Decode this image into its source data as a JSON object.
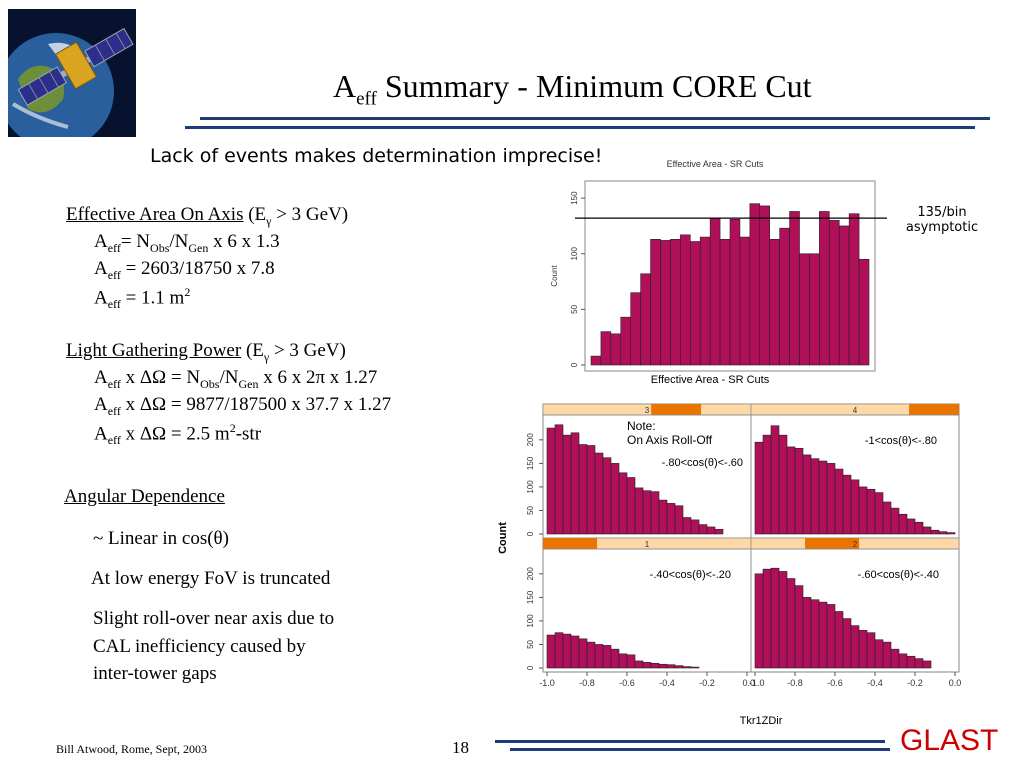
{
  "header": {
    "title_main": "A",
    "title_sub": "eff",
    "title_rest": " Summary - Minimum CORE Cut",
    "logo_icon": "satellite-over-earth-icon",
    "rule_color": "#1f3a7a"
  },
  "subtitle": "Lack of events makes determination imprecise!",
  "left": {
    "s1_heading": "Effective Area On Axis",
    "s1_cond": "(E",
    "s1_cond_sub": "γ",
    "s1_cond_rest": " > 3 GeV)",
    "s1_l1_a": "A",
    "s1_l1_sub": "eff",
    "s1_l1_b": "= N",
    "s1_l1_sub2": "Obs",
    "s1_l1_c": "/N",
    "s1_l1_sub3": "Gen",
    "s1_l1_d": " x 6 x 1.3",
    "s1_l2_a": "A",
    "s1_l2_sub": "eff",
    "s1_l2_b": " = 2603/18750 x 7.8",
    "s1_l3_a": "A",
    "s1_l3_sub": "eff",
    "s1_l3_b": " = 1.1 m",
    "s1_l3_sup": "2",
    "s2_heading": "Light Gathering Power",
    "s2_cond": "(E",
    "s2_cond_sub": "γ",
    "s2_cond_rest": " > 3 GeV)",
    "s2_l1_a": "A",
    "s2_l1_sub": "eff",
    "s2_l1_b": " x ΔΩ = N",
    "s2_l1_sub2": "Obs",
    "s2_l1_c": "/N",
    "s2_l1_sub3": "Gen",
    "s2_l1_d": " x 6 x 2π x 1.27",
    "s2_l2_a": "A",
    "s2_l2_sub": "eff",
    "s2_l2_b": " x ΔΩ = 9877/187500 x 37.7 x 1.27",
    "s2_l3_a": "A",
    "s2_l3_sub": "eff",
    "s2_l3_b": " x ΔΩ = 2.5 m",
    "s2_l3_sup": "2",
    "s2_l3_c": "-str",
    "s3_heading": "Angular Dependence",
    "s3_l1": "~ Linear in cos(θ)",
    "s3_l2": "At low energy FoV is truncated",
    "s3_l3": "Slight roll-over near axis due to",
    "s3_l4": "CAL inefficiency caused by",
    "s3_l5": "inter-tower gaps"
  },
  "annotations": {
    "asymptote_line1": "135/bin",
    "asymptote_line2": "asymptotic",
    "note_line1": "Note:",
    "note_line2": "On Axis Roll-Off"
  },
  "footer": {
    "author": "Bill Atwood,  Rome, Sept, 2003",
    "page": "18",
    "brand": "GLAST",
    "brand_color": "#cc0000"
  },
  "chart_data": [
    {
      "type": "bar",
      "title": "Effective Area - SR Cuts",
      "xlabel": "Effective Area - SR Cuts",
      "ylabel": "Count",
      "ylim": [
        0,
        160
      ],
      "yticks": [
        0,
        50,
        100,
        150
      ],
      "values": [
        8,
        30,
        28,
        43,
        65,
        82,
        113,
        112,
        113,
        117,
        111,
        115,
        132,
        113,
        131,
        115,
        145,
        143,
        113,
        123,
        138,
        100,
        100,
        138,
        130,
        125,
        136,
        95
      ],
      "reference_line": 132,
      "color": "#b0105a",
      "grid": false
    },
    {
      "type": "bar",
      "xlabel": "Tkr1ZDir",
      "ylabel": "Count",
      "xlim": [
        -1.0,
        0.0
      ],
      "xticks": [
        "-1.0",
        "-0.8",
        "-0.6",
        "-0.4",
        "-0.2",
        "0.0"
      ],
      "ylim": [
        0,
        240
      ],
      "yticks": [
        0,
        50,
        100,
        150,
        200
      ],
      "color": "#b0105a",
      "panels": [
        {
          "strip": "3",
          "label_line1": "-.80<cos(θ)<-.60",
          "values": [
            225,
            232,
            210,
            215,
            190,
            188,
            172,
            162,
            150,
            130,
            120,
            98,
            92,
            90,
            72,
            65,
            60,
            35,
            30,
            20,
            15,
            10
          ]
        },
        {
          "strip": "4",
          "label_line1": "-1<cos(θ)<-.80",
          "values": [
            195,
            210,
            230,
            210,
            185,
            182,
            168,
            160,
            155,
            150,
            138,
            125,
            115,
            100,
            95,
            88,
            68,
            55,
            42,
            32,
            25,
            15,
            8,
            5,
            3
          ]
        },
        {
          "strip": "1",
          "label_line1": "-.40<cos(θ)<-.20",
          "values": [
            70,
            75,
            72,
            68,
            62,
            55,
            50,
            48,
            40,
            30,
            28,
            15,
            12,
            10,
            8,
            7,
            5,
            3,
            2
          ]
        },
        {
          "strip": "2",
          "label_line1": "-.60<cos(θ)<-.40",
          "values": [
            200,
            210,
            212,
            205,
            190,
            175,
            150,
            145,
            140,
            135,
            120,
            105,
            90,
            80,
            75,
            60,
            55,
            40,
            30,
            25,
            20,
            15
          ]
        }
      ]
    }
  ]
}
